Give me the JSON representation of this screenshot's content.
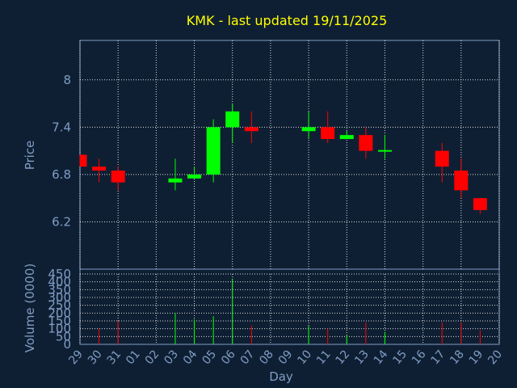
{
  "chart_data": {
    "type": "candlestick",
    "title": "KMK - last updated 19/11/2025",
    "ylabel": "Price",
    "volume_ylabel": "Volume (0000)",
    "xlabel": "Day",
    "price_ylim": [
      5.6,
      8.5
    ],
    "price_ticks": [
      "8",
      "7.4",
      "6.8",
      "6.2"
    ],
    "price_tick_values": [
      8,
      7.4,
      6.8,
      6.2
    ],
    "volume_ylim": [
      0,
      450
    ],
    "volume_ticks": [
      "450",
      "400",
      "350",
      "300",
      "250",
      "200",
      "150",
      "100",
      "50",
      "0"
    ],
    "volume_tick_values": [
      450,
      400,
      350,
      300,
      250,
      200,
      150,
      100,
      50,
      0
    ],
    "x_labels": [
      "29",
      "30",
      "31",
      "01",
      "02",
      "03",
      "04",
      "05",
      "06",
      "07",
      "08",
      "09",
      "10",
      "11",
      "12",
      "13",
      "14",
      "15",
      "16",
      "17",
      "18",
      "19",
      "20"
    ],
    "grid": true,
    "up_color": "#00ff00",
    "down_color": "#ff0000",
    "candles": [
      {
        "day": "29",
        "open": 7.05,
        "high": 7.05,
        "low": 6.9,
        "close": 6.9,
        "volume": 0
      },
      {
        "day": "30",
        "open": 6.9,
        "high": 7.0,
        "low": 6.7,
        "close": 6.85,
        "volume": 100
      },
      {
        "day": "31",
        "open": 6.85,
        "high": 6.9,
        "low": 6.6,
        "close": 6.7,
        "volume": 150
      },
      {
        "day": "03",
        "open": 6.7,
        "high": 7.0,
        "low": 6.6,
        "close": 6.75,
        "volume": 200
      },
      {
        "day": "04",
        "open": 6.75,
        "high": 6.9,
        "low": 6.75,
        "close": 6.8,
        "volume": 160
      },
      {
        "day": "05",
        "open": 6.8,
        "high": 7.5,
        "low": 6.7,
        "close": 7.4,
        "volume": 180
      },
      {
        "day": "06",
        "open": 7.4,
        "high": 7.7,
        "low": 7.2,
        "close": 7.6,
        "volume": 420
      },
      {
        "day": "07",
        "open": 7.4,
        "high": 7.6,
        "low": 7.2,
        "close": 7.35,
        "volume": 120
      },
      {
        "day": "10",
        "open": 7.35,
        "high": 7.6,
        "low": 7.25,
        "close": 7.4,
        "volume": 120
      },
      {
        "day": "11",
        "open": 7.4,
        "high": 7.6,
        "low": 7.2,
        "close": 7.25,
        "volume": 100
      },
      {
        "day": "12",
        "open": 7.25,
        "high": 7.35,
        "low": 7.25,
        "close": 7.3,
        "volume": 60
      },
      {
        "day": "13",
        "open": 7.3,
        "high": 7.4,
        "low": 7.0,
        "close": 7.1,
        "volume": 140
      },
      {
        "day": "14",
        "open": 7.1,
        "high": 7.3,
        "low": 7.0,
        "close": 7.11,
        "volume": 80
      },
      {
        "day": "17",
        "open": 7.1,
        "high": 7.2,
        "low": 6.7,
        "close": 6.9,
        "volume": 140
      },
      {
        "day": "18",
        "open": 6.85,
        "high": 7.0,
        "low": 6.5,
        "close": 6.6,
        "volume": 140
      },
      {
        "day": "19",
        "open": 6.5,
        "high": 6.5,
        "low": 6.3,
        "close": 6.35,
        "volume": 90
      }
    ]
  }
}
